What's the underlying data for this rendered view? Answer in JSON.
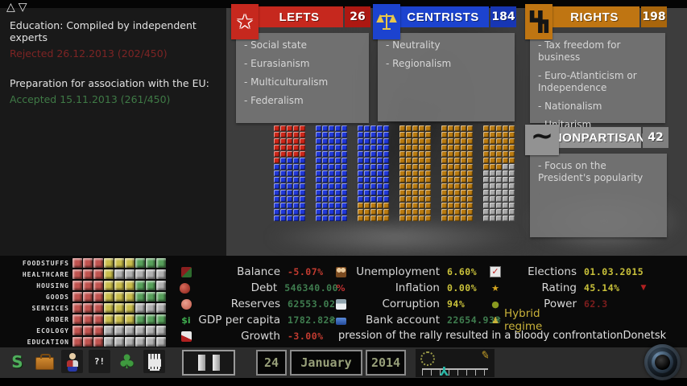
{
  "window": {
    "scroll_up": "△",
    "scroll_down": "▽"
  },
  "messages": {
    "items": [
      {
        "title": "Education: Compiled by independent experts",
        "status": "Rejected 26.12.2013 (202/450)",
        "status_type": "rejected"
      },
      {
        "title": "Preparation for association with the EU:",
        "status": "Accepted 15.11.2013 (261/450)",
        "status_type": "accepted"
      }
    ]
  },
  "parties": [
    {
      "id": "lefts",
      "name": "LEFTS",
      "count": "26",
      "icon": "star-icon",
      "header_color": "#c6281e",
      "count_color": "#ad1812",
      "items": [
        "Social state",
        "Eurasianism",
        "Multiculturalism",
        "Federalism"
      ]
    },
    {
      "id": "centrists",
      "name": "CENTRISTS",
      "count": "184",
      "icon": "scales-icon",
      "header_color": "#1c43cf",
      "count_color": "#1736b4",
      "items": [
        "Neutrality",
        "Regionalism"
      ]
    },
    {
      "id": "rights",
      "name": "RIGHTS",
      "count": "198",
      "icon": "wolfsangel-icon",
      "header_color": "#bf7512",
      "count_color": "#a8650c",
      "items": [
        "Tax freedom for business",
        "Euro-Atlanticism or Independence",
        "Nationalism",
        "Unitarism"
      ]
    },
    {
      "id": "nonpartisan",
      "name": "NONPARTISAN",
      "count": "42",
      "icon": "tilde-icon",
      "header_color": "#929292",
      "count_color": "#7f7f7f",
      "items": [
        "Focus on the President's popularity"
      ]
    }
  ],
  "parliament": {
    "total_seats": 450,
    "columns": 6,
    "rows_per_column": 15,
    "seats_per_row": 5,
    "groups": [
      {
        "name": "lefts",
        "count": 26,
        "color": "#cc2618"
      },
      {
        "name": "centrists",
        "count": 184,
        "color": "#2038d8"
      },
      {
        "name": "rights",
        "count": 198,
        "color": "#b97a10"
      },
      {
        "name": "nonpartisan",
        "count": 42,
        "color": "#a8a8a8"
      }
    ]
  },
  "needs": {
    "cell_colors": {
      "r": "#c0524e",
      "y": "#c9bd4b",
      "g": "#57a05a",
      "n": "#b0b0b0"
    },
    "rows": [
      {
        "label": "FOODSTUFFS",
        "cells": [
          "r",
          "r",
          "r",
          "y",
          "y",
          "y",
          "g",
          "g",
          "g"
        ]
      },
      {
        "label": "HEALTHCARE",
        "cells": [
          "r",
          "r",
          "r",
          "y",
          "n",
          "n",
          "n",
          "n",
          "n"
        ]
      },
      {
        "label": "HOUSING",
        "cells": [
          "r",
          "r",
          "r",
          "y",
          "y",
          "y",
          "g",
          "g",
          "n"
        ]
      },
      {
        "label": "GOODS",
        "cells": [
          "r",
          "r",
          "r",
          "y",
          "y",
          "y",
          "g",
          "g",
          "g"
        ]
      },
      {
        "label": "SERVICES",
        "cells": [
          "r",
          "r",
          "r",
          "y",
          "y",
          "y",
          "n",
          "n",
          "n"
        ]
      },
      {
        "label": "ORDER",
        "cells": [
          "r",
          "r",
          "r",
          "y",
          "y",
          "y",
          "g",
          "g",
          "g"
        ]
      },
      {
        "label": "ECOLOGY",
        "cells": [
          "r",
          "r",
          "r",
          "n",
          "n",
          "n",
          "n",
          "n",
          "n"
        ]
      },
      {
        "label": "EDUCATION",
        "cells": [
          "r",
          "r",
          "r",
          "n",
          "n",
          "n",
          "n",
          "n",
          "n"
        ]
      }
    ]
  },
  "stats": {
    "col1": [
      {
        "icon": "balance-icon",
        "label": "Balance",
        "value": "-5.07%",
        "color": "red"
      },
      {
        "icon": "debt-icon",
        "label": "Debt",
        "value": "546340.00",
        "color": "green"
      },
      {
        "icon": "reserves-icon",
        "label": "Reserves",
        "value": "62553.02",
        "color": "green"
      },
      {
        "icon": "gdp-icon",
        "label": "GDP per capita",
        "value": "1782.82₴",
        "color": "green"
      },
      {
        "icon": "growth-icon",
        "label": "Growth",
        "value": "-3.00%",
        "color": "red"
      }
    ],
    "col2": [
      {
        "icon": "unemployment-icon",
        "label": "Unemployment",
        "value": "6.60%",
        "color": "yellow"
      },
      {
        "icon": "inflation-icon",
        "label": "Inflation",
        "value": "0.00%",
        "color": "yellow"
      },
      {
        "icon": "corruption-icon",
        "label": "Corruption",
        "value": "94%",
        "color": "yellow"
      },
      {
        "icon": "bank-icon",
        "label": "Bank account",
        "value": "22654.93₴",
        "color": "green"
      }
    ],
    "col3": [
      {
        "icon": "elections-icon",
        "label": "Elections",
        "value": "01.03.2015",
        "color": "yellow"
      },
      {
        "icon": "rating-icon",
        "label": "Rating",
        "value": "45.14%",
        "color": "yellow",
        "trend": "▼"
      },
      {
        "icon": "power-icon",
        "label": "Power",
        "value": "62.3",
        "color": "darkred"
      }
    ],
    "regime": {
      "icon": "regime-icon",
      "label": "Hybrid regime"
    }
  },
  "ticker": {
    "text": "pression of the rally resulted in a bloody confrontation",
    "location": "Donetsk"
  },
  "toolbar": {
    "icons": [
      "hryvnia-icon",
      "briefcase-icon",
      "person-icon",
      "dialog-icon",
      "tree-icon",
      "hand-icon"
    ],
    "dialog_text": "?!"
  },
  "datebar": {
    "day": "24",
    "month": "January",
    "year": "2014"
  }
}
